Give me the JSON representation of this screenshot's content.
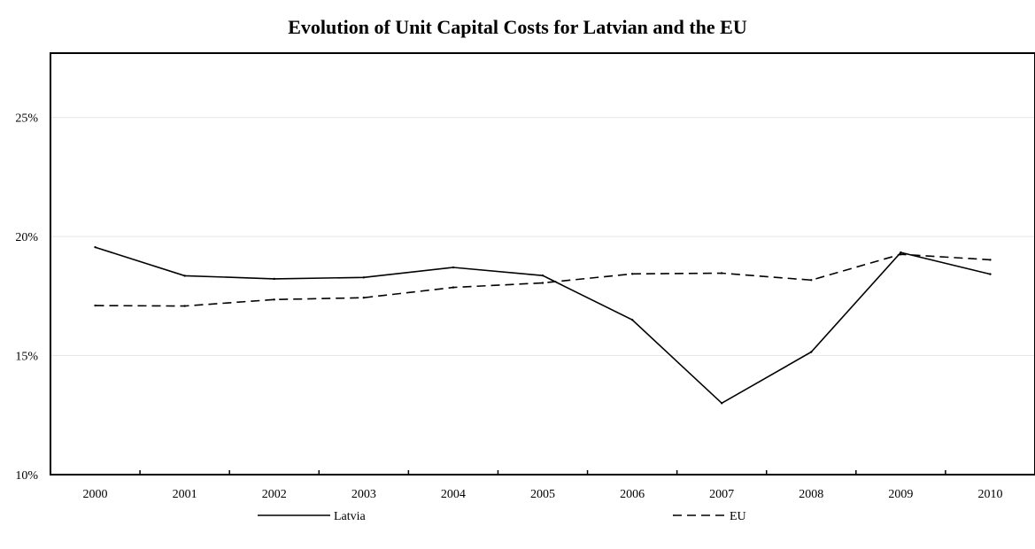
{
  "chart_data": {
    "type": "line",
    "title": "Evolution of Unit Capital Costs for Latvian and the EU",
    "xlabel": "",
    "ylabel": "",
    "categories": [
      "2000",
      "2001",
      "2002",
      "2003",
      "2004",
      "2005",
      "2006",
      "2007",
      "2008",
      "2009",
      "2010"
    ],
    "y_ticks": [
      {
        "value": 10,
        "label": "10%"
      },
      {
        "value": 15,
        "label": "15%"
      },
      {
        "value": 20,
        "label": "20%"
      },
      {
        "value": 25,
        "label": "25%"
      }
    ],
    "ylim": [
      10,
      27.7
    ],
    "grid": true,
    "legend_position": "bottom",
    "series": [
      {
        "name": "Latvia",
        "style": "solid",
        "color": "#000000",
        "values": [
          19.55,
          18.35,
          18.22,
          18.28,
          18.7,
          18.36,
          16.5,
          13.0,
          15.15,
          19.33,
          18.42
        ]
      },
      {
        "name": "EU",
        "style": "dashed",
        "color": "#000000",
        "values": [
          17.1,
          17.08,
          17.35,
          17.43,
          17.86,
          18.05,
          18.43,
          18.46,
          18.17,
          19.25,
          19.02
        ]
      }
    ]
  }
}
